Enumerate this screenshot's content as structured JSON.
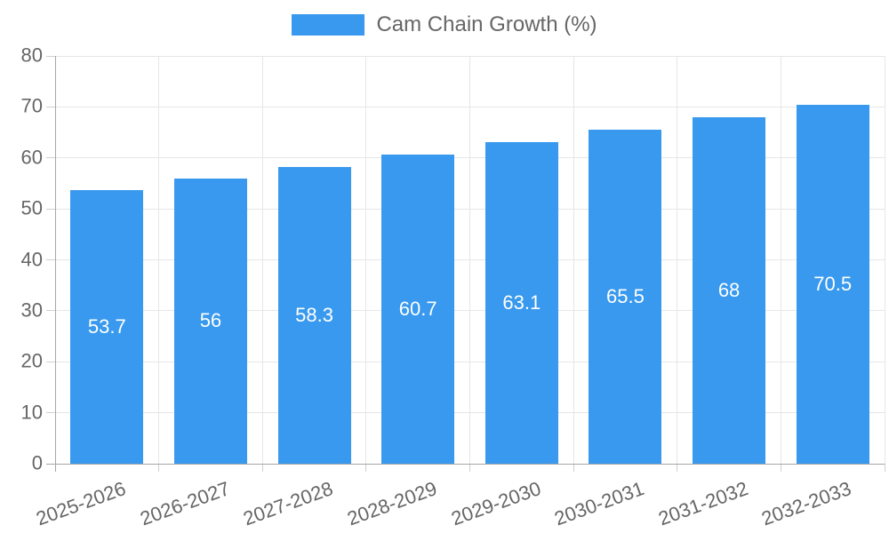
{
  "chart_data": {
    "type": "bar",
    "title": "Cam Chain Growth (%)",
    "legend": {
      "label": "Cam Chain Growth (%)",
      "position": "top"
    },
    "categories": [
      "2025-2026",
      "2026-2027",
      "2027-2028",
      "2028-2029",
      "2029-2030",
      "2030-2031",
      "2031-2032",
      "2032-2033"
    ],
    "values": [
      53.7,
      56,
      58.3,
      60.7,
      63.1,
      65.5,
      68,
      70.5
    ],
    "value_labels": [
      "53.7",
      "56",
      "58.3",
      "60.7",
      "63.1",
      "65.5",
      "68",
      "70.5"
    ],
    "xlabel": "",
    "ylabel": "",
    "ylim": [
      0,
      80
    ],
    "ytick_step": 10,
    "yticks": [
      0,
      10,
      20,
      30,
      40,
      50,
      60,
      70,
      80
    ],
    "grid": true,
    "x_label_rotation_deg": -20,
    "legend_position": "top",
    "colors": {
      "bar": "#3899ee",
      "grid": "#e6e6e6",
      "axis": "#a6a6a6",
      "tick": "#d0d0d0",
      "label_text": "#666666",
      "value_text": "#ffffff",
      "background": "#ffffff"
    }
  }
}
